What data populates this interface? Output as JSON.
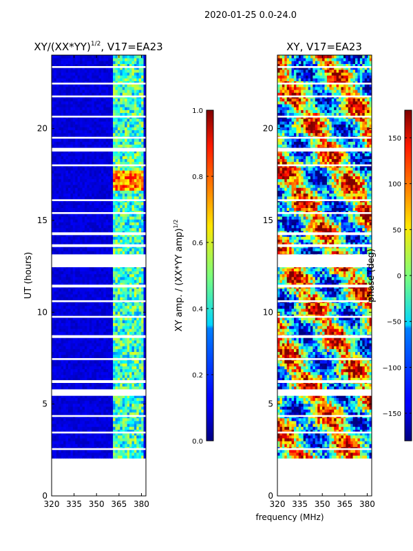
{
  "figure": {
    "suptitle": "2020-01-25 0.0-24.0",
    "shared_xlabel": "frequency (MHz)"
  },
  "chart_data": [
    {
      "type": "heatmap",
      "title_main": "XY/(XX*YY)",
      "title_sup": "1/2",
      "title_rest": ", V17=EA23",
      "ylabel": "UT (hours)",
      "xlim": [
        320,
        383
      ],
      "ylim": [
        0,
        24
      ],
      "xticks": [
        "320",
        "335",
        "350",
        "365",
        "380"
      ],
      "xtick_values": [
        320,
        335,
        350,
        365,
        380
      ],
      "yticks": [
        "0",
        "5",
        "10",
        "15",
        "20"
      ],
      "ytick_values": [
        0,
        5,
        10,
        15,
        20
      ],
      "data_ut_range": [
        2.05,
        24.0
      ],
      "signal_freq_range": [
        360,
        381
      ],
      "colorbar": {
        "label_main": "XY amp. / (XX*YY amp)",
        "label_sup": "1/2",
        "ticks": [
          "0.0",
          "0.2",
          "0.4",
          "0.6",
          "0.8",
          "1.0"
        ],
        "tick_values": [
          0.0,
          0.2,
          0.4,
          0.6,
          0.8,
          1.0
        ],
        "range": [
          0,
          1
        ]
      }
    },
    {
      "type": "heatmap",
      "title": "XY, V17=EA23",
      "xlim": [
        320,
        383
      ],
      "ylim": [
        0,
        24
      ],
      "xticks": [
        "320",
        "335",
        "350",
        "365",
        "380"
      ],
      "xtick_values": [
        320,
        335,
        350,
        365,
        380
      ],
      "yticks": [
        "0",
        "5",
        "10",
        "15",
        "20"
      ],
      "ytick_values": [
        0,
        5,
        10,
        15,
        20
      ],
      "data_ut_range": [
        2.05,
        24.0
      ],
      "colorbar": {
        "label": "phase (deg)",
        "ticks": [
          "−150",
          "−100",
          "−50",
          "0",
          "50",
          "100",
          "150"
        ],
        "tick_values": [
          -150,
          -100,
          -50,
          0,
          50,
          100,
          150
        ],
        "range": [
          -180,
          180
        ]
      }
    }
  ],
  "flagged_ut_bands": [
    [
      12.45,
      13.15
    ],
    [
      5.45,
      5.8
    ],
    [
      18.75,
      18.95
    ],
    [
      11.35,
      11.5
    ],
    [
      8.6,
      8.75
    ],
    [
      17.95,
      18.05
    ],
    [
      19.45,
      19.55
    ],
    [
      13.55,
      13.7
    ],
    [
      14.2,
      14.35
    ],
    [
      6.15,
      6.3
    ],
    [
      16.05,
      16.15
    ],
    [
      23.3,
      23.4
    ],
    [
      9.7,
      9.8
    ],
    [
      4.3,
      4.4
    ],
    [
      3.4,
      3.5
    ],
    [
      21.7,
      21.8
    ],
    [
      10.55,
      10.65
    ],
    [
      15.35,
      15.45
    ],
    [
      7.4,
      7.5
    ],
    [
      2.5,
      2.6
    ],
    [
      20.6,
      20.7
    ],
    [
      22.4,
      22.5
    ]
  ]
}
